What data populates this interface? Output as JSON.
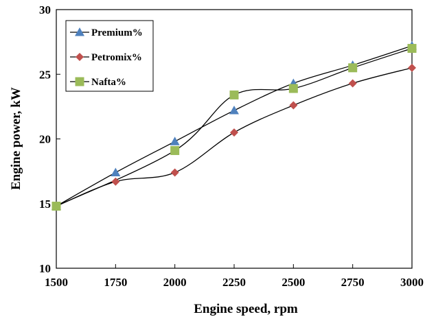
{
  "chart_data": {
    "type": "line",
    "title": "",
    "xlabel": "Engine speed, rpm",
    "ylabel": "Engine power, kW",
    "x": [
      1500,
      1750,
      2000,
      2250,
      2500,
      2750,
      3000
    ],
    "xlim": [
      1500,
      3000
    ],
    "ylim": [
      10,
      30
    ],
    "xticks": [
      "1500",
      "1750",
      "2000",
      "2250",
      "2500",
      "2750",
      "3000"
    ],
    "yticks": [
      "10",
      "15",
      "20",
      "25",
      "30"
    ],
    "grid": false,
    "legend_position": "top-left",
    "series": [
      {
        "name": "Premium%",
        "marker": "triangle",
        "color": "#4f81bd",
        "values": [
          14.8,
          17.4,
          19.8,
          22.2,
          24.3,
          25.7,
          27.2
        ]
      },
      {
        "name": "Petromix%",
        "marker": "diamond",
        "color": "#c0504d",
        "values": [
          14.8,
          16.7,
          17.4,
          20.5,
          22.6,
          24.3,
          25.5
        ]
      },
      {
        "name": "Nafta%",
        "marker": "square",
        "color": "#9bbb59",
        "values": [
          14.8,
          null,
          19.1,
          23.4,
          23.9,
          25.5,
          27.0
        ]
      }
    ]
  }
}
